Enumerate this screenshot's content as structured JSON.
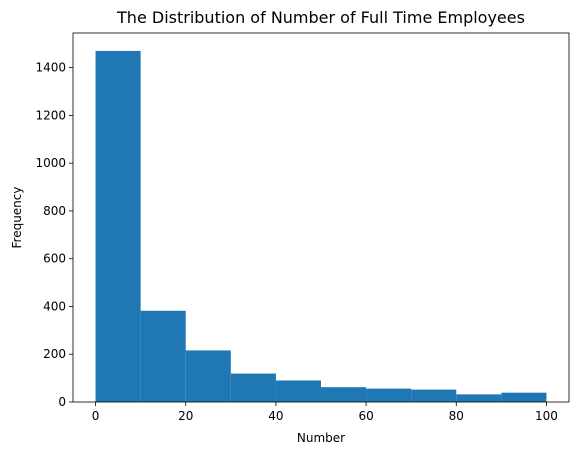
{
  "chart_data": {
    "type": "bar",
    "title": "The Distribution of Number of Full Time Employees",
    "xlabel": "Number",
    "ylabel": "Frequency",
    "bins": [
      {
        "start": 0,
        "end": 10,
        "value": 1470
      },
      {
        "start": 10,
        "end": 20,
        "value": 382
      },
      {
        "start": 20,
        "end": 30,
        "value": 216
      },
      {
        "start": 30,
        "end": 40,
        "value": 119
      },
      {
        "start": 40,
        "end": 50,
        "value": 90
      },
      {
        "start": 50,
        "end": 60,
        "value": 62
      },
      {
        "start": 60,
        "end": 70,
        "value": 56
      },
      {
        "start": 70,
        "end": 80,
        "value": 52
      },
      {
        "start": 80,
        "end": 90,
        "value": 32
      },
      {
        "start": 90,
        "end": 100,
        "value": 39
      }
    ],
    "xlim": [
      -5,
      105
    ],
    "ylim": [
      0,
      1545
    ],
    "xticks": [
      0,
      20,
      40,
      60,
      80,
      100
    ],
    "yticks": [
      0,
      200,
      400,
      600,
      800,
      1000,
      1200,
      1400
    ],
    "grid": false,
    "colors": {
      "bar": "#1f77b4"
    }
  }
}
